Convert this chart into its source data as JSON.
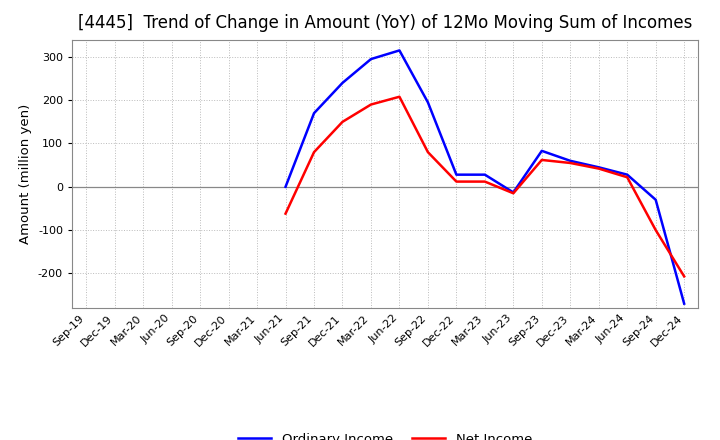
{
  "title": "[4445]  Trend of Change in Amount (YoY) of 12Mo Moving Sum of Incomes",
  "ylabel": "Amount (million yen)",
  "ordinary_income": {
    "dates": [
      "Sep-19",
      "Dec-19",
      "Mar-20",
      "Jun-20",
      "Sep-20",
      "Dec-20",
      "Mar-21",
      "Jun-21",
      "Sep-21",
      "Dec-21",
      "Mar-22",
      "Jun-22",
      "Sep-22",
      "Dec-22",
      "Mar-23",
      "Jun-23",
      "Sep-23",
      "Dec-23",
      "Mar-24",
      "Jun-24",
      "Sep-24",
      "Dec-24"
    ],
    "values": [
      null,
      null,
      null,
      null,
      null,
      null,
      null,
      0,
      170,
      240,
      295,
      315,
      195,
      28,
      28,
      -13,
      83,
      60,
      45,
      28,
      -30,
      -270
    ]
  },
  "net_income": {
    "dates": [
      "Sep-19",
      "Dec-19",
      "Mar-20",
      "Jun-20",
      "Sep-20",
      "Dec-20",
      "Mar-21",
      "Jun-21",
      "Sep-21",
      "Dec-21",
      "Mar-22",
      "Jun-22",
      "Sep-22",
      "Dec-22",
      "Mar-23",
      "Jun-23",
      "Sep-23",
      "Dec-23",
      "Mar-24",
      "Jun-24",
      "Sep-24",
      "Dec-24"
    ],
    "values": [
      null,
      null,
      null,
      null,
      null,
      null,
      null,
      -62,
      80,
      150,
      190,
      208,
      80,
      12,
      12,
      -15,
      62,
      55,
      42,
      22,
      -100,
      -207
    ]
  },
  "ordinary_color": "#0000FF",
  "net_color": "#FF0000",
  "ylim": [
    -280,
    340
  ],
  "yticks": [
    -200,
    -100,
    0,
    100,
    200,
    300
  ],
  "background_color": "#FFFFFF",
  "grid_color": "#BBBBBB",
  "zero_line_color": "#888888",
  "title_fontsize": 12,
  "label_fontsize": 9.5,
  "tick_fontsize": 8
}
